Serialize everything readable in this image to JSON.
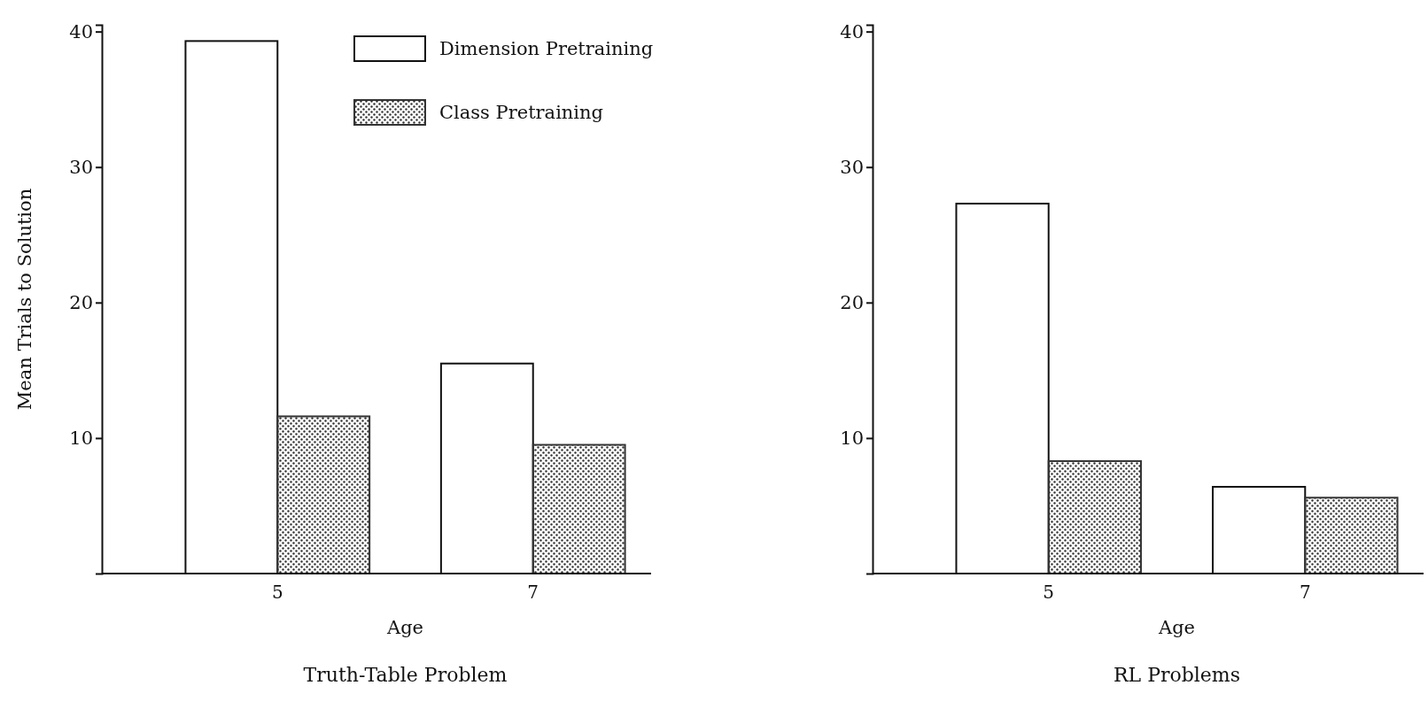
{
  "chart_data": [
    {
      "type": "bar",
      "title": "Truth-Table Problem",
      "xlabel": "Age",
      "ylabel": "Mean Trials to Solution",
      "categories": [
        "5",
        "7"
      ],
      "series": [
        {
          "name": "Dimension Pretraining",
          "color": "#ffffff",
          "values": [
            39.3,
            15.5
          ]
        },
        {
          "name": "Class Pretraining",
          "color": "#333333",
          "values": [
            11.6,
            9.5
          ]
        }
      ],
      "ylim": [
        0,
        40.5
      ],
      "yticks": [
        10,
        20,
        30,
        40
      ],
      "legend": "top right"
    },
    {
      "type": "bar",
      "title": "RL Problems",
      "xlabel": "Age",
      "categories": [
        "5",
        "7"
      ],
      "series": [
        {
          "color": "#ffffff",
          "values": [
            27.3,
            6.4
          ]
        },
        {
          "color": "#333333",
          "values": [
            8.3,
            5.6
          ]
        }
      ],
      "ylim": [
        0,
        40.5
      ],
      "yticks": [
        10,
        20,
        30,
        40
      ]
    }
  ]
}
